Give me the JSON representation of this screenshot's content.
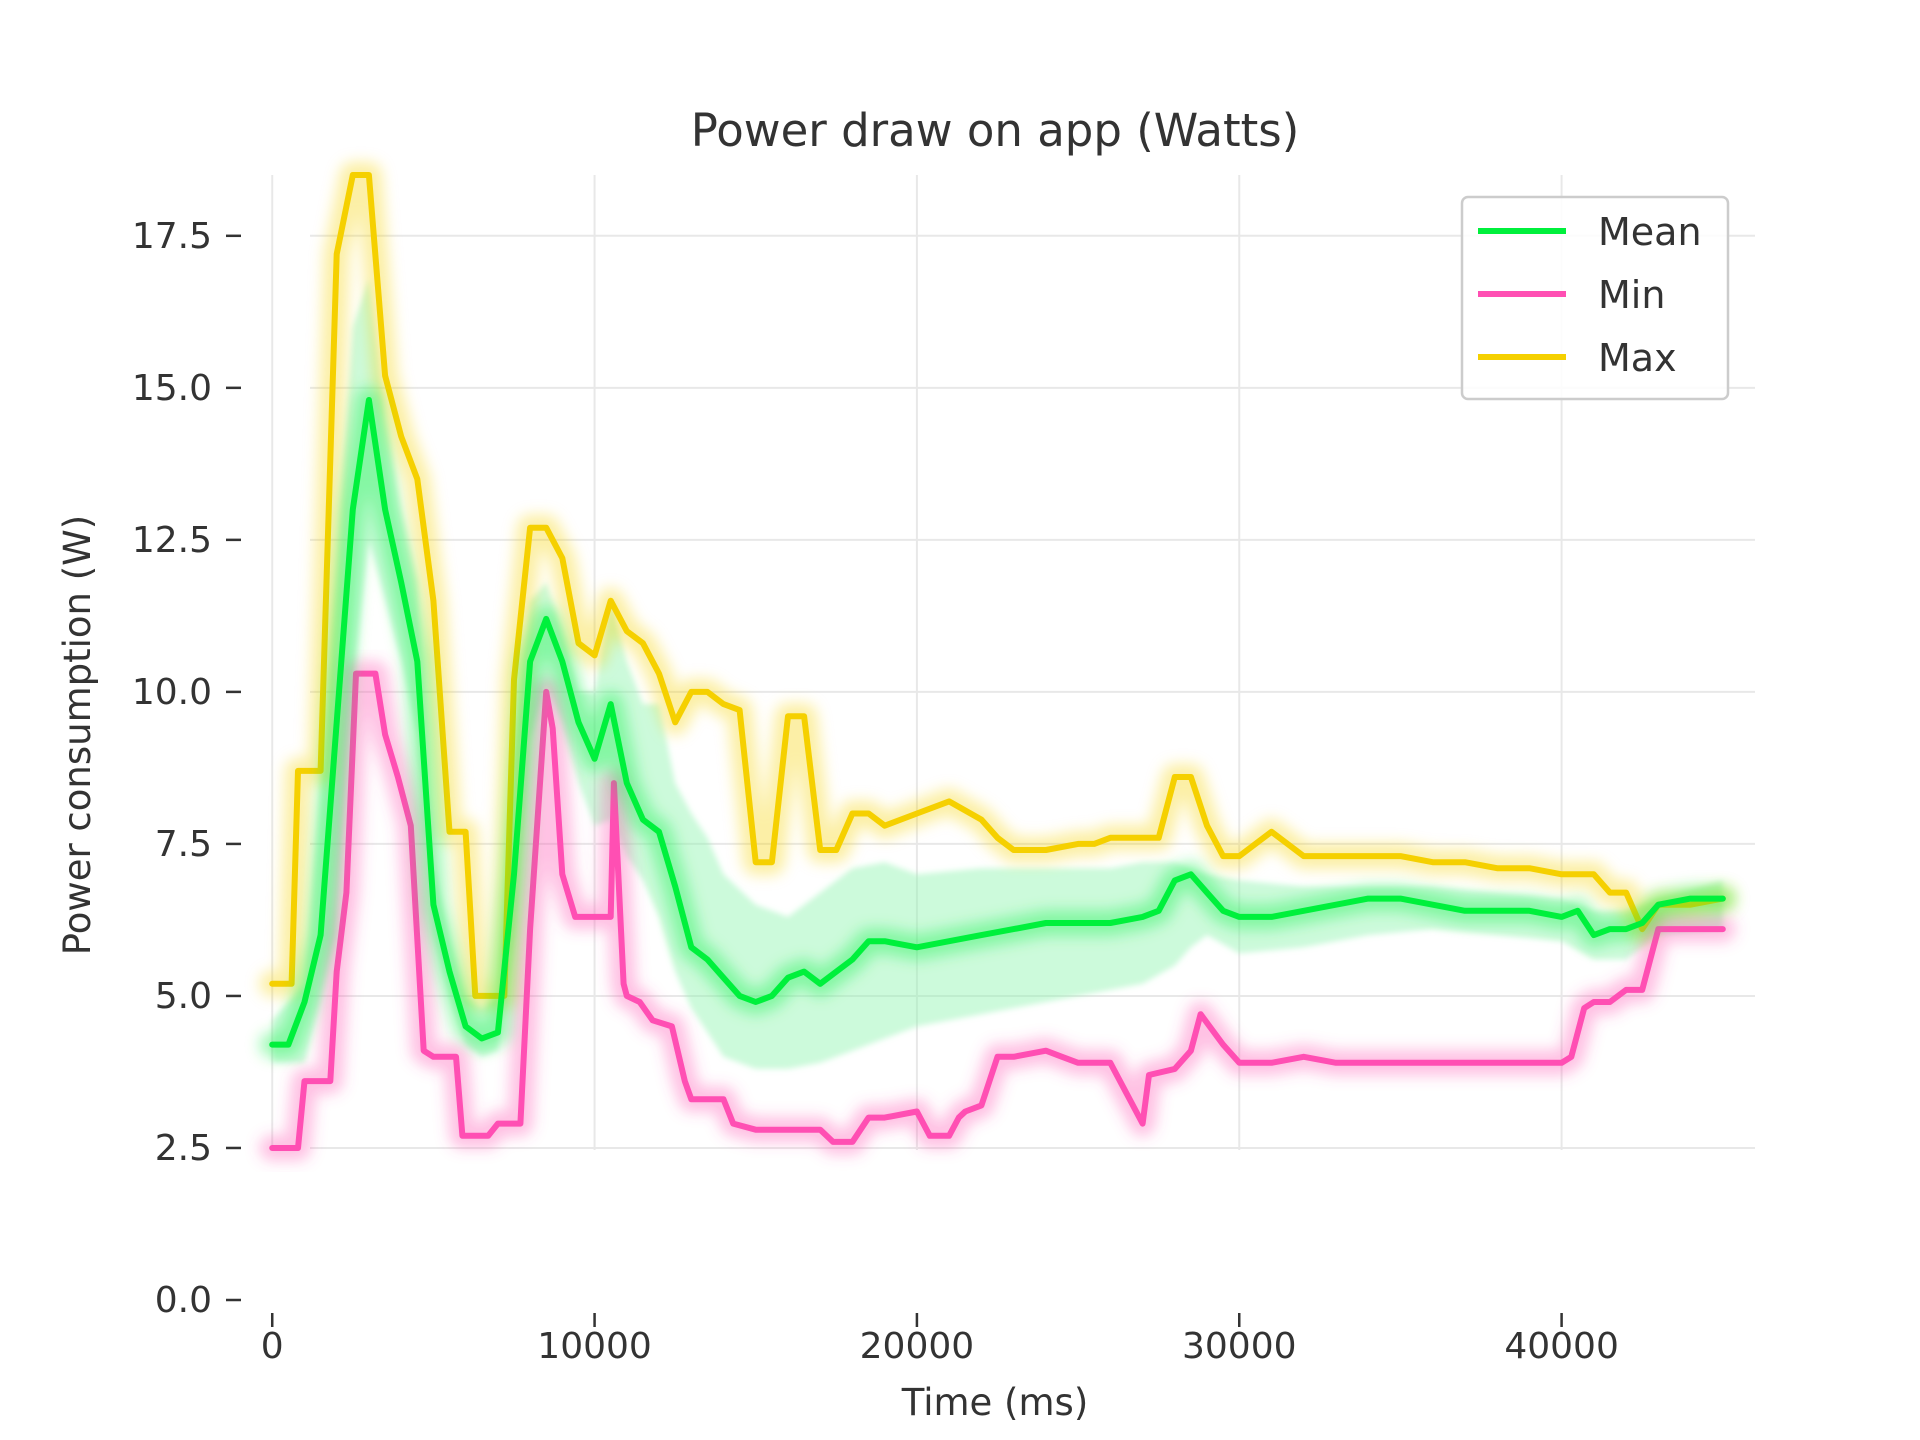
{
  "chart_data": {
    "type": "line",
    "title": "Power draw on app (Watts)",
    "xlabel": "Time (ms)",
    "ylabel": "Power consumption (W)",
    "xlim": [
      -1000,
      46000
    ],
    "ylim": [
      0,
      18.5
    ],
    "xticks": [
      0,
      10000,
      20000,
      30000,
      40000
    ],
    "yticks": [
      0.0,
      2.5,
      5.0,
      7.5,
      10.0,
      12.5,
      15.0,
      17.5
    ],
    "ytick_labels": [
      "0.0",
      "2.5",
      "5.0",
      "7.5",
      "10.0",
      "12.5",
      "15.0",
      "17.5"
    ],
    "xtick_labels": [
      "0",
      "10000",
      "20000",
      "30000",
      "40000"
    ],
    "grid": true,
    "legend_position": "top-right",
    "series": [
      {
        "name": "Mean",
        "color": "#00f03c",
        "x": [
          0,
          500,
          1000,
          1500,
          2000,
          2500,
          3000,
          3500,
          4000,
          4500,
          5000,
          5500,
          6000,
          6500,
          7000,
          7500,
          8000,
          8500,
          9000,
          9500,
          10000,
          10500,
          11000,
          11500,
          12000,
          12500,
          13000,
          13500,
          14000,
          14500,
          15000,
          15500,
          16000,
          16500,
          17000,
          17500,
          18000,
          18500,
          19000,
          20000,
          21000,
          22000,
          23000,
          24000,
          25000,
          26000,
          27000,
          27500,
          28000,
          28500,
          29000,
          29500,
          30000,
          31000,
          32000,
          33000,
          34000,
          35000,
          36000,
          37000,
          38000,
          39000,
          40000,
          40500,
          41000,
          41500,
          42000,
          42500,
          43000,
          44000,
          45000
        ],
        "y": [
          4.2,
          4.2,
          4.9,
          6.0,
          9.5,
          13.0,
          14.8,
          13.0,
          11.8,
          10.5,
          6.5,
          5.4,
          4.5,
          4.3,
          4.4,
          7.0,
          10.5,
          11.2,
          10.5,
          9.5,
          8.9,
          9.8,
          8.5,
          7.9,
          7.7,
          6.8,
          5.8,
          5.6,
          5.3,
          5.0,
          4.9,
          5.0,
          5.3,
          5.4,
          5.2,
          5.4,
          5.6,
          5.9,
          5.9,
          5.8,
          5.9,
          6.0,
          6.1,
          6.2,
          6.2,
          6.2,
          6.3,
          6.4,
          6.9,
          7.0,
          6.7,
          6.4,
          6.3,
          6.3,
          6.4,
          6.5,
          6.6,
          6.6,
          6.5,
          6.4,
          6.4,
          6.4,
          6.3,
          6.4,
          6.0,
          6.1,
          6.1,
          6.2,
          6.5,
          6.6,
          6.6
        ]
      },
      {
        "name": "Min",
        "color": "#ff4fb3",
        "x": [
          0,
          800,
          1000,
          1800,
          2000,
          2300,
          2600,
          3200,
          3500,
          3900,
          4300,
          4700,
          5000,
          5700,
          5900,
          6700,
          7000,
          7700,
          8000,
          8500,
          8700,
          9000,
          9400,
          10000,
          10500,
          10600,
          10900,
          11000,
          11400,
          11800,
          12400,
          12800,
          13000,
          14000,
          14300,
          15000,
          15500,
          16000,
          17000,
          17400,
          18000,
          18500,
          19000,
          20000,
          20400,
          21000,
          21300,
          21500,
          22000,
          22500,
          23000,
          24000,
          24500,
          25000,
          25500,
          26000,
          27000,
          27200,
          28000,
          28500,
          28800,
          29500,
          30000,
          31000,
          32000,
          33000,
          34000,
          35000,
          36000,
          37000,
          38000,
          39000,
          39500,
          40000,
          40300,
          40700,
          41000,
          41500,
          42000,
          42500,
          43000,
          45000
        ],
        "y": [
          2.5,
          2.5,
          3.6,
          3.6,
          5.4,
          6.7,
          10.3,
          10.3,
          9.3,
          8.6,
          7.8,
          4.1,
          4.0,
          4.0,
          2.7,
          2.7,
          2.9,
          2.9,
          6.1,
          10.0,
          9.4,
          7.0,
          6.3,
          6.3,
          6.3,
          8.5,
          5.2,
          5.0,
          4.9,
          4.6,
          4.5,
          3.6,
          3.3,
          3.3,
          2.9,
          2.8,
          2.8,
          2.8,
          2.8,
          2.6,
          2.6,
          3.0,
          3.0,
          3.1,
          2.7,
          2.7,
          3.0,
          3.1,
          3.2,
          4.0,
          4.0,
          4.1,
          4.0,
          3.9,
          3.9,
          3.9,
          2.9,
          3.7,
          3.8,
          4.1,
          4.7,
          4.2,
          3.9,
          3.9,
          4.0,
          3.9,
          3.9,
          3.9,
          3.9,
          3.9,
          3.9,
          3.9,
          3.9,
          3.9,
          4.0,
          4.8,
          4.9,
          4.9,
          5.1,
          5.1,
          6.1,
          6.1
        ]
      },
      {
        "name": "Max",
        "color": "#f5d000",
        "x": [
          0,
          600,
          800,
          1500,
          2000,
          2500,
          3000,
          3500,
          4000,
          4500,
          5000,
          5500,
          6000,
          6300,
          6600,
          7200,
          7500,
          8000,
          8500,
          9000,
          9500,
          10000,
          10500,
          11000,
          11500,
          12000,
          12500,
          13000,
          13500,
          14000,
          14500,
          15000,
          15500,
          16000,
          16500,
          17000,
          17500,
          18000,
          18500,
          19000,
          20000,
          21000,
          22000,
          22500,
          23000,
          24000,
          25000,
          25500,
          26000,
          27000,
          27500,
          28000,
          28500,
          29000,
          29500,
          30000,
          31000,
          32000,
          33000,
          34000,
          35000,
          36000,
          37000,
          38000,
          39000,
          40000,
          40500,
          41000,
          41500,
          42000,
          42500,
          43000,
          44000,
          45000
        ],
        "y": [
          5.2,
          5.2,
          8.7,
          8.7,
          17.2,
          18.5,
          18.5,
          15.2,
          14.2,
          13.5,
          11.5,
          7.7,
          7.7,
          5.0,
          5.0,
          5.0,
          10.2,
          12.7,
          12.7,
          12.2,
          10.8,
          10.6,
          11.5,
          11.0,
          10.8,
          10.3,
          9.5,
          10.0,
          10.0,
          9.8,
          9.7,
          7.2,
          7.2,
          9.6,
          9.6,
          7.4,
          7.4,
          8.0,
          8.0,
          7.8,
          8.0,
          8.2,
          7.9,
          7.6,
          7.4,
          7.4,
          7.5,
          7.5,
          7.6,
          7.6,
          7.6,
          8.6,
          8.6,
          7.8,
          7.3,
          7.3,
          7.7,
          7.3,
          7.3,
          7.3,
          7.3,
          7.2,
          7.2,
          7.1,
          7.1,
          7.0,
          7.0,
          7.0,
          6.7,
          6.7,
          6.1,
          6.5,
          6.5,
          6.6
        ]
      }
    ],
    "band": {
      "color": "#8ff5b0",
      "x": [
        0,
        1000,
        2000,
        2500,
        3000,
        3500,
        4000,
        4500,
        5000,
        5500,
        6000,
        6500,
        7000,
        7500,
        8000,
        8500,
        9000,
        9500,
        10000,
        10500,
        11000,
        11500,
        12000,
        12500,
        13000,
        13500,
        14000,
        15000,
        16000,
        17000,
        18000,
        19000,
        20000,
        22000,
        24000,
        26000,
        27000,
        28000,
        28500,
        29000,
        30000,
        32000,
        34000,
        36000,
        38000,
        40000,
        41000,
        42000,
        43000,
        45000
      ],
      "lower": [
        3.9,
        3.9,
        6.0,
        10.0,
        12.5,
        11.5,
        10.5,
        9.3,
        6.0,
        5.0,
        4.2,
        4.0,
        4.1,
        6.0,
        9.2,
        10.1,
        9.5,
        8.5,
        7.8,
        7.9,
        7.3,
        6.9,
        6.3,
        5.4,
        4.8,
        4.4,
        4.0,
        3.8,
        3.8,
        3.9,
        4.1,
        4.3,
        4.5,
        4.7,
        4.9,
        5.1,
        5.2,
        5.5,
        5.8,
        6.0,
        5.7,
        5.8,
        6.0,
        6.1,
        6.0,
        5.9,
        5.6,
        5.6,
        6.0,
        6.1
      ],
      "upper": [
        4.6,
        5.2,
        12.0,
        16.0,
        16.8,
        14.5,
        13.0,
        11.8,
        7.2,
        6.0,
        5.0,
        4.8,
        5.0,
        9.0,
        11.5,
        11.8,
        11.0,
        10.0,
        10.0,
        11.5,
        10.5,
        9.8,
        9.8,
        8.5,
        8.0,
        7.6,
        7.0,
        6.5,
        6.3,
        6.7,
        7.1,
        7.2,
        7.0,
        7.1,
        7.1,
        7.1,
        7.2,
        7.2,
        7.1,
        7.0,
        6.9,
        6.8,
        6.8,
        6.8,
        6.7,
        6.6,
        6.4,
        6.4,
        6.6,
        6.9
      ]
    }
  }
}
